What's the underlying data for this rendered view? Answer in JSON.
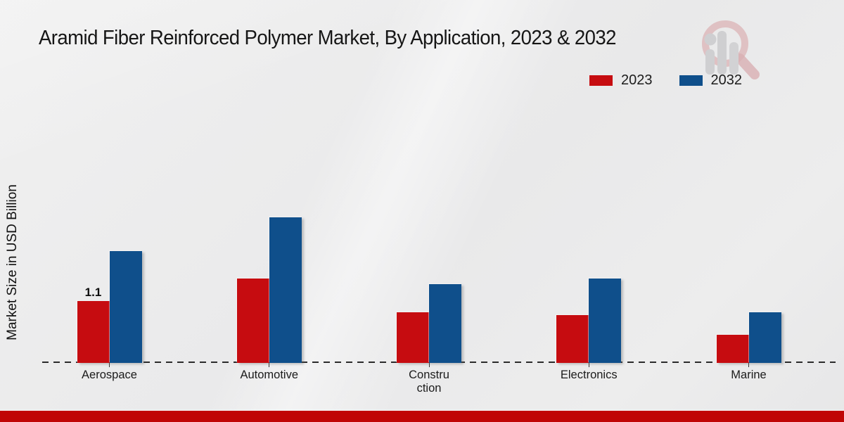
{
  "title": "Aramid Fiber Reinforced Polymer Market, By Application, 2023 & 2032",
  "ylabel": "Market Size in USD Billion",
  "legend": [
    {
      "label": "2023",
      "color": "#c60c10"
    },
    {
      "label": "2032",
      "color": "#0f4f8b"
    }
  ],
  "colors": {
    "series_2023": "#c60c10",
    "series_2032": "#0f4f8b",
    "bottom_strip": "#c00505",
    "baseline": "#2b2b2b",
    "background": "#ebebeb",
    "watermark_ring": "#d0878b",
    "watermark_bars": "#b9b9bd"
  },
  "watermark": {
    "name": "market-research-magnifier-logo"
  },
  "chart_data": {
    "type": "bar",
    "title": "Aramid Fiber Reinforced Polymer Market, By Application, 2023 & 2032",
    "xlabel": "",
    "ylabel": "Market Size in USD Billion",
    "categories": [
      "Aerospace",
      "Automotive",
      "Construction",
      "Electronics",
      "Marine"
    ],
    "category_display": [
      "Aerospace",
      "Automotive",
      "Constru\nction",
      "Electronics",
      "Marine"
    ],
    "series": [
      {
        "name": "2023",
        "color": "#c60c10",
        "values": [
          1.1,
          1.5,
          0.9,
          0.85,
          0.5
        ]
      },
      {
        "name": "2032",
        "color": "#0f4f8b",
        "values": [
          2.0,
          2.6,
          1.4,
          1.5,
          0.9
        ]
      }
    ],
    "annotations": [
      {
        "category": "Aerospace",
        "series": "2023",
        "text": "1.1"
      }
    ],
    "ylim": [
      0,
      2.8
    ],
    "grid": false,
    "axis_style": "dashed-baseline-only",
    "legend_position": "top-right"
  }
}
